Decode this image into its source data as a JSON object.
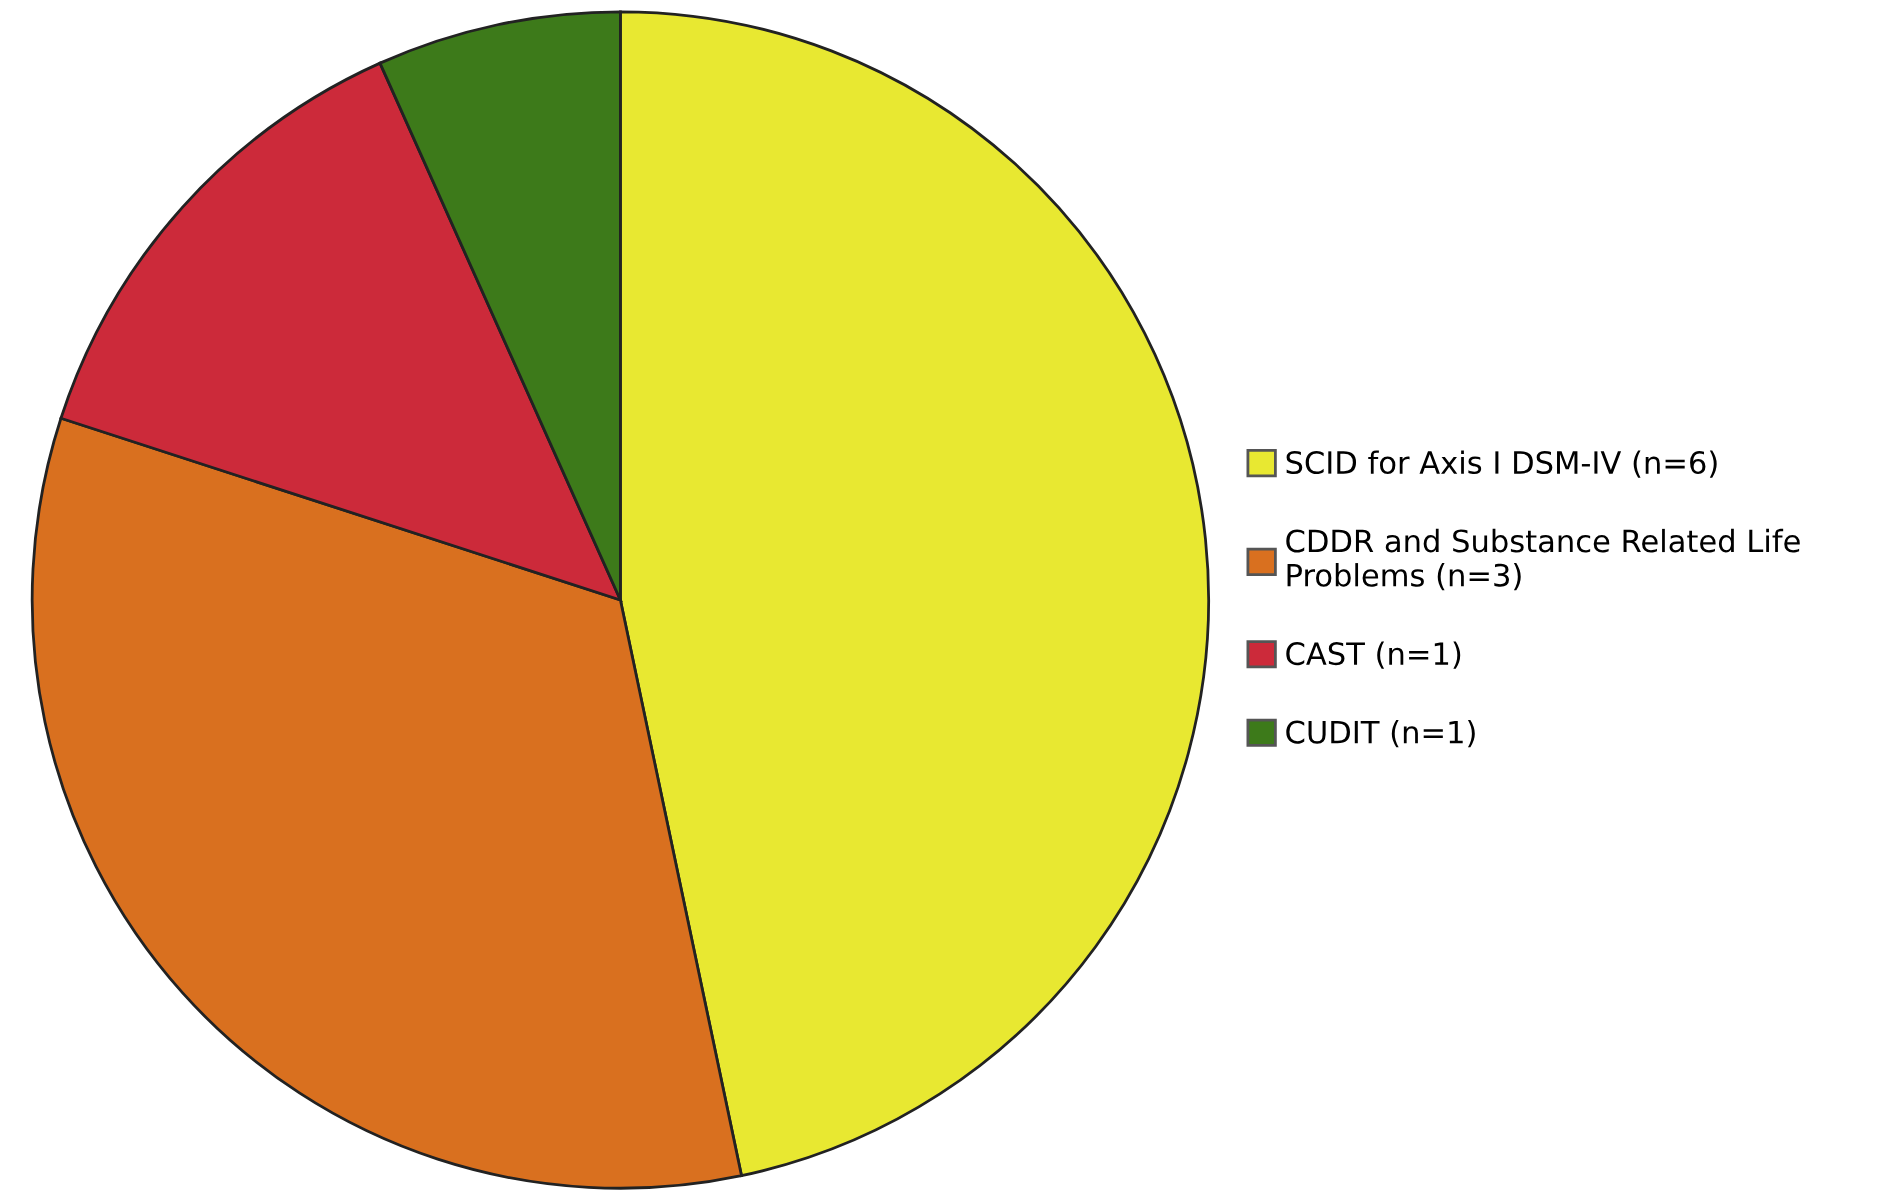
{
  "chart_data": {
    "type": "pie",
    "categories": [
      "SCID for Axis I DSM-IV (n=6)",
      "CDDR and Substance Related Life\nProblems (n=3)",
      "CAST (n=1)",
      "CUDIT (n=1)"
    ],
    "values": [
      46.7,
      33.3,
      13.3,
      6.7
    ],
    "colors": [
      "#e8e831",
      "#d9701f",
      "#cc2a3a",
      "#3d7a1a"
    ],
    "legend": "right"
  }
}
